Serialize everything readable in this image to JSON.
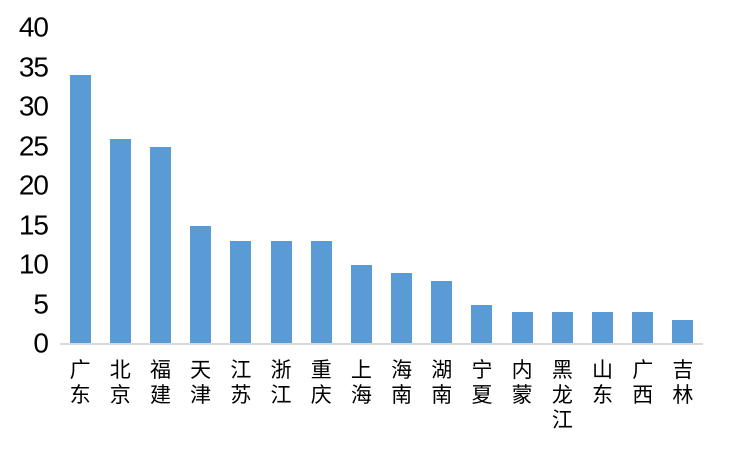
{
  "chart_data": {
    "type": "bar",
    "title": "",
    "xlabel": "",
    "ylabel": "",
    "categories": [
      "广东",
      "北京",
      "福建",
      "天津",
      "江苏",
      "浙江",
      "重庆",
      "上海",
      "海南",
      "湖南",
      "宁夏",
      "内蒙",
      "黑龙江",
      "山东",
      "广西",
      "吉林"
    ],
    "values": [
      34,
      26,
      25,
      15,
      13,
      13,
      13,
      10,
      9,
      8,
      5,
      4,
      4,
      4,
      4,
      3
    ],
    "ylim": [
      0,
      40
    ],
    "yticks": [
      0,
      5,
      10,
      15,
      20,
      25,
      30,
      35,
      40
    ],
    "grid": false,
    "legend": null,
    "bar_color": "#5B9BD5",
    "axis_line_color": "#D9D9D9",
    "text_color": "#000000"
  }
}
